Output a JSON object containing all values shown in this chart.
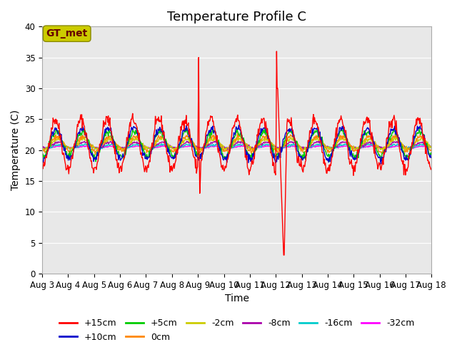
{
  "title": "Temperature Profile C",
  "xlabel": "Time",
  "ylabel": "Temperature (C)",
  "ylim": [
    0,
    40
  ],
  "xlim_days": [
    0,
    15
  ],
  "x_tick_labels": [
    "Aug 3",
    "Aug 4",
    "Aug 5",
    "Aug 6",
    "Aug 7",
    "Aug 8",
    "Aug 9",
    "Aug 10",
    "Aug 11",
    "Aug 12",
    "Aug 13",
    "Aug 14",
    "Aug 15",
    "Aug 16",
    "Aug 17",
    "Aug 18"
  ],
  "background_color": "#e8e8e8",
  "plot_bg_color": "#e8e8e8",
  "series_colors": {
    "+15cm": "#ff0000",
    "+10cm": "#0000cc",
    "+5cm": "#00cc00",
    "0cm": "#ff8800",
    "-2cm": "#cccc00",
    "-8cm": "#aa00aa",
    "-16cm": "#00cccc",
    "-32cm": "#ff00ff"
  },
  "legend_label": "GT_met",
  "legend_box_color": "#cccc00",
  "legend_text_color": "#660000",
  "title_fontsize": 13,
  "axis_fontsize": 10,
  "tick_fontsize": 8.5,
  "legend_fontsize": 9
}
